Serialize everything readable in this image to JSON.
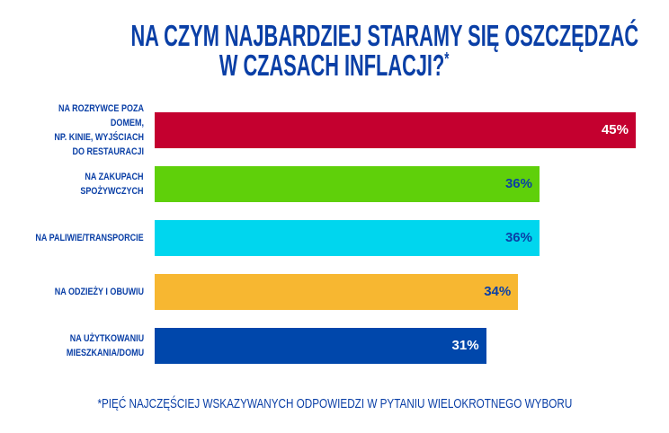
{
  "chart_data": {
    "type": "bar",
    "orientation": "horizontal",
    "title_line1": "NA CZYM NAJBARDZIEJ STARAMY SIĘ OSZCZĘDZAĆ",
    "title_line2": "W CZASACH INFLACJI?",
    "title_mark": "*",
    "categories": [
      "NA ROZRYWCE POZA DOMEM,\nNP. KINIE, WYJŚCIACH\nDO RESTAURACJI",
      "NA ZAKUPACH\nSPOŻYWCZYCH",
      "NA PALIWIE/TRANSPORCIE",
      "NA ODZIEŻY I OBUWIU",
      "NA UŻYTKOWANIU\nMIESZKANIA/DOMU"
    ],
    "values": [
      45,
      36,
      36,
      34,
      31
    ],
    "value_labels": [
      "45%",
      "36%",
      "36%",
      "34%",
      "31%"
    ],
    "bar_colors": [
      "#c4002f",
      "#5fd00a",
      "#00d6ee",
      "#f7b731",
      "#0047ab"
    ],
    "value_label_colors": [
      "#ffffff",
      "#0a3fa6",
      "#0a3fa6",
      "#0a3fa6",
      "#ffffff"
    ],
    "xlim": [
      0,
      45
    ],
    "grid": false,
    "footnote": "*PIĘĆ NAJCZĘŚCIEJ WSKAZYWANYCH ODPOWIEDZI W PYTANIU WIELOKROTNEGO WYBORU"
  }
}
